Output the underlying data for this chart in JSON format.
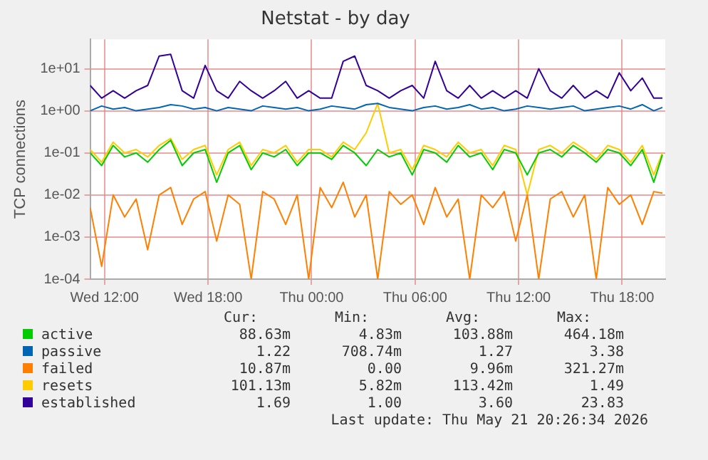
{
  "chart_data": {
    "type": "line",
    "title": "Netstat - by day",
    "ylabel": "TCP connections",
    "log": "y",
    "grid": true,
    "legend": "bottom",
    "marker": "none",
    "x": [
      "2026-05-20T11:10",
      "2026-05-20T11:50",
      "2026-05-20T12:30",
      "2026-05-20T13:10",
      "2026-05-20T13:50",
      "2026-05-20T14:30",
      "2026-05-20T15:10",
      "2026-05-20T15:50",
      "2026-05-20T16:30",
      "2026-05-20T17:10",
      "2026-05-20T17:50",
      "2026-05-20T18:30",
      "2026-05-20T19:10",
      "2026-05-20T19:50",
      "2026-05-20T20:30",
      "2026-05-20T21:10",
      "2026-05-20T21:50",
      "2026-05-20T22:30",
      "2026-05-20T23:10",
      "2026-05-20T23:50",
      "2026-05-21T00:30",
      "2026-05-21T01:10",
      "2026-05-21T01:50",
      "2026-05-21T02:30",
      "2026-05-21T03:10",
      "2026-05-21T03:50",
      "2026-05-21T04:30",
      "2026-05-21T05:10",
      "2026-05-21T05:50",
      "2026-05-21T06:30",
      "2026-05-21T07:10",
      "2026-05-21T07:50",
      "2026-05-21T08:30",
      "2026-05-21T09:10",
      "2026-05-21T09:50",
      "2026-05-21T10:30",
      "2026-05-21T11:10",
      "2026-05-21T11:50",
      "2026-05-21T12:30",
      "2026-05-21T13:10",
      "2026-05-21T13:50",
      "2026-05-21T14:30",
      "2026-05-21T15:10",
      "2026-05-21T15:50",
      "2026-05-21T16:30",
      "2026-05-21T17:10",
      "2026-05-21T17:50",
      "2026-05-21T18:30",
      "2026-05-21T19:10",
      "2026-05-21T19:50",
      "2026-05-21T20:20"
    ],
    "xlim": [
      "2026-05-20T11:10",
      "2026-05-21T20:30"
    ],
    "xticks": [
      {
        "value": "2026-05-20T12:00",
        "label": "Wed 12:00"
      },
      {
        "value": "2026-05-20T18:00",
        "label": "Wed 18:00"
      },
      {
        "value": "2026-05-21T00:00",
        "label": "Thu 00:00"
      },
      {
        "value": "2026-05-21T06:00",
        "label": "Thu 06:00"
      },
      {
        "value": "2026-05-21T12:00",
        "label": "Thu 12:00"
      },
      {
        "value": "2026-05-21T18:00",
        "label": "Thu 18:00"
      }
    ],
    "ylim": [
      0.0001,
      50
    ],
    "yticks": [
      {
        "value": 0.0001,
        "label": "1e-04"
      },
      {
        "value": 0.001,
        "label": "1e-03"
      },
      {
        "value": 0.01,
        "label": "1e-02"
      },
      {
        "value": 0.1,
        "label": "1e-01"
      },
      {
        "value": 1,
        "label": "1e+00"
      },
      {
        "value": 10,
        "label": "1e+01"
      }
    ],
    "series": [
      {
        "name": "active",
        "color": "#00cc00",
        "values": [
          0.1,
          0.05,
          0.15,
          0.08,
          0.1,
          0.06,
          0.12,
          0.2,
          0.05,
          0.1,
          0.12,
          0.02,
          0.1,
          0.15,
          0.04,
          0.1,
          0.08,
          0.12,
          0.05,
          0.1,
          0.1,
          0.07,
          0.15,
          0.1,
          0.05,
          0.12,
          0.08,
          0.1,
          0.03,
          0.12,
          0.1,
          0.06,
          0.15,
          0.08,
          0.1,
          0.04,
          0.12,
          0.1,
          0.03,
          0.1,
          0.12,
          0.08,
          0.15,
          0.1,
          0.06,
          0.12,
          0.1,
          0.05,
          0.12,
          0.02,
          0.09
        ]
      },
      {
        "name": "passive",
        "color": "#0066b3",
        "values": [
          1.0,
          1.3,
          1.1,
          1.2,
          1.0,
          1.1,
          1.2,
          1.4,
          1.3,
          1.1,
          1.2,
          1.0,
          1.2,
          1.1,
          1.0,
          1.3,
          1.2,
          1.1,
          1.2,
          1.0,
          1.1,
          1.3,
          1.2,
          1.1,
          1.4,
          1.5,
          1.2,
          1.1,
          1.0,
          1.2,
          1.3,
          1.1,
          1.2,
          1.4,
          1.1,
          1.2,
          1.0,
          1.1,
          1.3,
          1.2,
          1.1,
          1.2,
          1.3,
          1.0,
          1.1,
          1.2,
          1.3,
          1.1,
          1.4,
          1.0,
          1.2
        ]
      },
      {
        "name": "failed",
        "color": "#ff8000",
        "values": [
          0.005,
          0.0002,
          0.01,
          0.003,
          0.008,
          0.0005,
          0.01,
          0.015,
          0.002,
          0.008,
          0.012,
          0.0008,
          0.01,
          0.006,
          0.0001,
          0.012,
          0.008,
          0.002,
          0.01,
          0.0001,
          0.015,
          0.005,
          0.02,
          0.003,
          0.01,
          0.0001,
          0.012,
          0.006,
          0.01,
          0.002,
          0.015,
          0.003,
          0.008,
          0.0001,
          0.01,
          0.005,
          0.012,
          0.0008,
          0.01,
          0.0001,
          0.008,
          0.012,
          0.003,
          0.01,
          0.0001,
          0.015,
          0.006,
          0.01,
          0.002,
          0.012,
          0.011
        ]
      },
      {
        "name": "resets",
        "color": "#ffcc00",
        "values": [
          0.12,
          0.06,
          0.18,
          0.1,
          0.12,
          0.08,
          0.15,
          0.22,
          0.07,
          0.12,
          0.15,
          0.03,
          0.12,
          0.18,
          0.05,
          0.12,
          0.1,
          0.15,
          0.06,
          0.12,
          0.12,
          0.08,
          0.18,
          0.12,
          0.3,
          1.49,
          0.1,
          0.12,
          0.04,
          0.15,
          0.12,
          0.08,
          0.18,
          0.1,
          0.12,
          0.05,
          0.15,
          0.12,
          0.01,
          0.12,
          0.15,
          0.1,
          0.18,
          0.12,
          0.07,
          0.15,
          0.12,
          0.06,
          0.15,
          0.03,
          0.1
        ]
      },
      {
        "name": "established",
        "color": "#330099",
        "values": [
          4,
          2,
          3,
          2,
          3,
          4,
          20,
          22,
          3,
          2,
          12,
          3,
          2,
          5,
          3,
          2,
          3,
          5,
          2,
          3,
          2,
          2,
          15,
          20,
          4,
          3,
          2,
          3,
          4,
          2,
          15,
          3,
          2,
          4,
          2,
          3,
          2,
          3,
          2,
          10,
          3,
          2,
          4,
          2,
          3,
          2,
          8,
          3,
          6,
          2,
          2
        ]
      }
    ],
    "annotations": [
      "Cur:",
      "Min:",
      "Avg:",
      "Max:",
      "88.63m",
      "4.83m",
      "103.88m",
      "464.18m",
      "1.22",
      "708.74m",
      "1.27",
      "3.38",
      "10.87m",
      "0.00",
      "9.96m",
      "321.27m",
      "101.13m",
      "5.82m",
      "113.42m",
      "1.49",
      "1.69",
      "1.00",
      "3.60",
      "23.83",
      "Last update: Thu May 21 20:26:34 2026"
    ]
  }
}
